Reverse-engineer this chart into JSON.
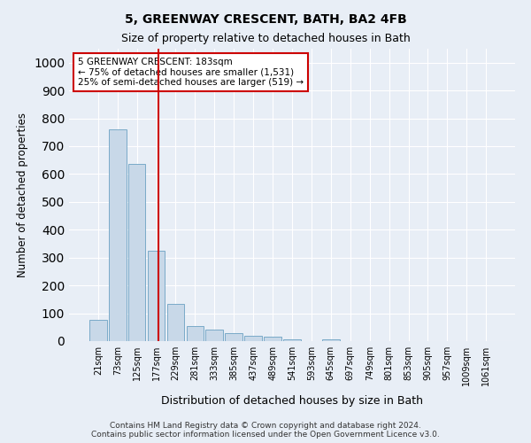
{
  "title1": "5, GREENWAY CRESCENT, BATH, BA2 4FB",
  "title2": "Size of property relative to detached houses in Bath",
  "xlabel": "Distribution of detached houses by size in Bath",
  "ylabel": "Number of detached properties",
  "footer": "Contains HM Land Registry data © Crown copyright and database right 2024.\nContains public sector information licensed under the Open Government Licence v3.0.",
  "bin_labels": [
    "21sqm",
    "73sqm",
    "125sqm",
    "177sqm",
    "229sqm",
    "281sqm",
    "333sqm",
    "385sqm",
    "437sqm",
    "489sqm",
    "541sqm",
    "593sqm",
    "645sqm",
    "697sqm",
    "749sqm",
    "801sqm",
    "853sqm",
    "905sqm",
    "957sqm",
    "1009sqm",
    "1061sqm"
  ],
  "bar_values": [
    75,
    760,
    635,
    325,
    135,
    55,
    40,
    30,
    20,
    15,
    5,
    0,
    5,
    0,
    0,
    0,
    0,
    0,
    0,
    0,
    0
  ],
  "bar_color": "#c8d8e8",
  "bar_edge_color": "#7aaac8",
  "vline_x": 3.1,
  "vline_color": "#cc0000",
  "annotation_text": "5 GREENWAY CRESCENT: 183sqm\n← 75% of detached houses are smaller (1,531)\n25% of semi-detached houses are larger (519) →",
  "annotation_box_color": "#ffffff",
  "annotation_box_edge": "#cc0000",
  "ylim": [
    0,
    1050
  ],
  "yticks": [
    0,
    100,
    200,
    300,
    400,
    500,
    600,
    700,
    800,
    900,
    1000
  ],
  "background_color": "#e8eef6",
  "plot_bg_color": "#e8eef6",
  "grid_color": "#ffffff"
}
